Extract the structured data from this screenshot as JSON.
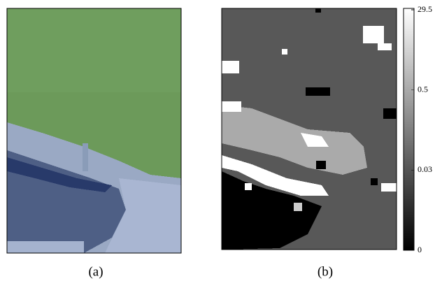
{
  "panels": [
    {
      "caption": "(a)"
    },
    {
      "caption": "(b)"
    }
  ],
  "colorbar": {
    "ticks": [
      0,
      0.03,
      0.5,
      29.5
    ]
  }
}
